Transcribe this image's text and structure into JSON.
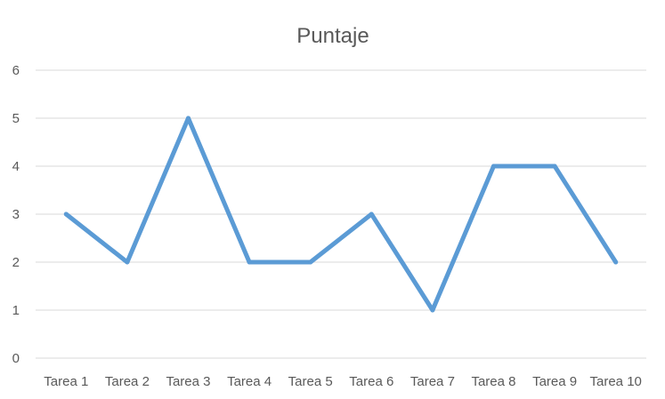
{
  "chart_data": {
    "type": "line",
    "title": "Puntaje",
    "xlabel": "",
    "ylabel": "",
    "categories": [
      "Tarea 1",
      "Tarea 2",
      "Tarea 3",
      "Tarea 4",
      "Tarea 5",
      "Tarea 6",
      "Tarea 7",
      "Tarea 8",
      "Tarea 9",
      "Tarea 10"
    ],
    "series": [
      {
        "values": [
          3,
          2,
          5,
          2,
          2,
          3,
          1,
          4,
          4,
          2
        ],
        "color": "#5B9BD5"
      }
    ],
    "y_ticks": [
      "0",
      "1",
      "2",
      "3",
      "4",
      "5",
      "6"
    ],
    "ylim": [
      0,
      6
    ],
    "grid": "horizontal",
    "legend": "none",
    "colors": {
      "gridline": "#D9D9D9",
      "axis_text": "#595959",
      "line": "#5B9BD5"
    }
  }
}
